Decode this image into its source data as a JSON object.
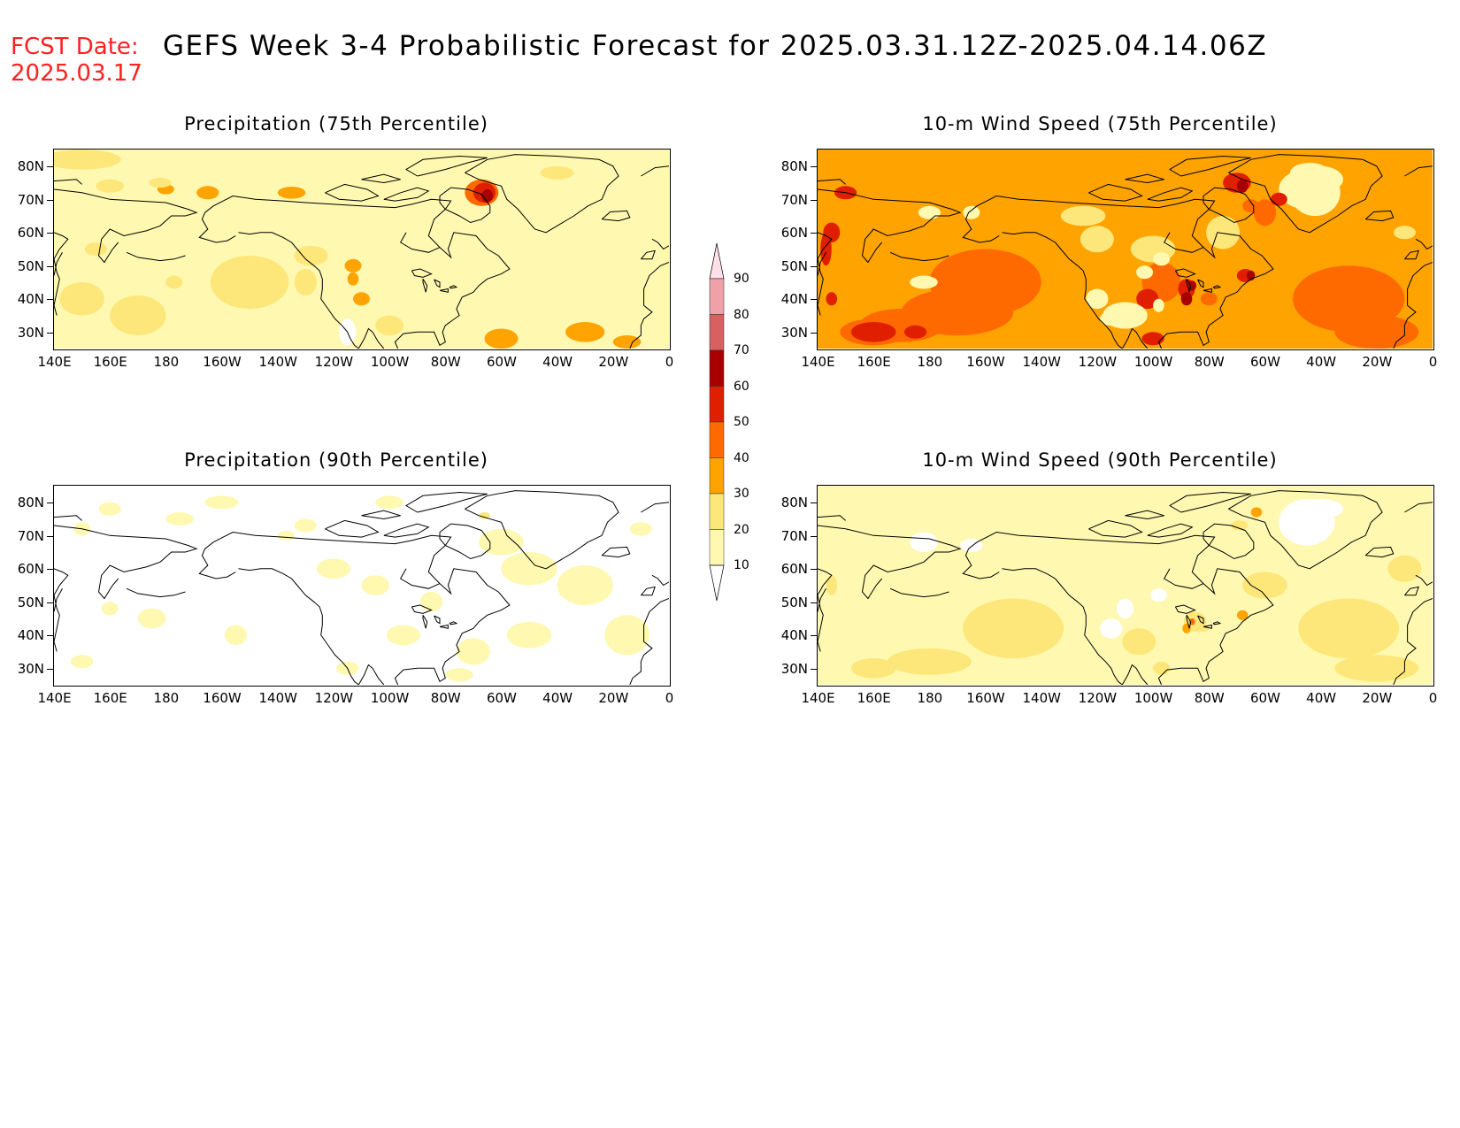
{
  "header": {
    "fcst_label": "FCST Date:",
    "fcst_date": "2025.03.17",
    "title": "GEFS Week 3-4 Probabilistic Forecast for 2025.03.31.12Z-2025.04.14.06Z"
  },
  "axes": {
    "lat_labels": [
      "80N",
      "70N",
      "60N",
      "50N",
      "40N",
      "30N"
    ],
    "lon_labels": [
      "140E",
      "160E",
      "180",
      "160W",
      "140W",
      "120W",
      "100W",
      "80W",
      "60W",
      "40W",
      "20W",
      "0"
    ],
    "lat_range": [
      25,
      85
    ],
    "lon_range": [
      140,
      360
    ]
  },
  "panels": [
    {
      "title": "Precipitation (75th Percentile)",
      "variable": "precipitation",
      "percentile": 75,
      "dominant_bin": "10-20",
      "max_bin": "50-60",
      "max_region": "Baffin Bay / NW Greenland"
    },
    {
      "title": "10-m Wind Speed (75th Percentile)",
      "variable": "wind",
      "percentile": 75,
      "dominant_bin": "30-40",
      "max_bin": "50-60",
      "max_region": "Baffin Bay, Great Lakes, Gulf of St. Lawrence"
    },
    {
      "title": "Precipitation (90th Percentile)",
      "variable": "precipitation",
      "percentile": 90,
      "dominant_bin": "<10",
      "max_bin": "20-30",
      "max_region": "Baffin Bay"
    },
    {
      "title": "10-m Wind Speed (90th Percentile)",
      "variable": "wind",
      "percentile": 90,
      "dominant_bin": "10-20",
      "max_bin": "40-50",
      "max_region": "Great Lakes"
    }
  ],
  "colorbar": {
    "labels": [
      "90",
      "80",
      "70",
      "60",
      "50",
      "40",
      "30",
      "20",
      "10"
    ],
    "colors": [
      "#ffffff",
      "#fff8b0",
      "#fde77a",
      "#ffa300",
      "#ff6a00",
      "#e01e00",
      "#a80000",
      "#d86060",
      "#f0a0a8",
      "#ffe0e8"
    ]
  }
}
